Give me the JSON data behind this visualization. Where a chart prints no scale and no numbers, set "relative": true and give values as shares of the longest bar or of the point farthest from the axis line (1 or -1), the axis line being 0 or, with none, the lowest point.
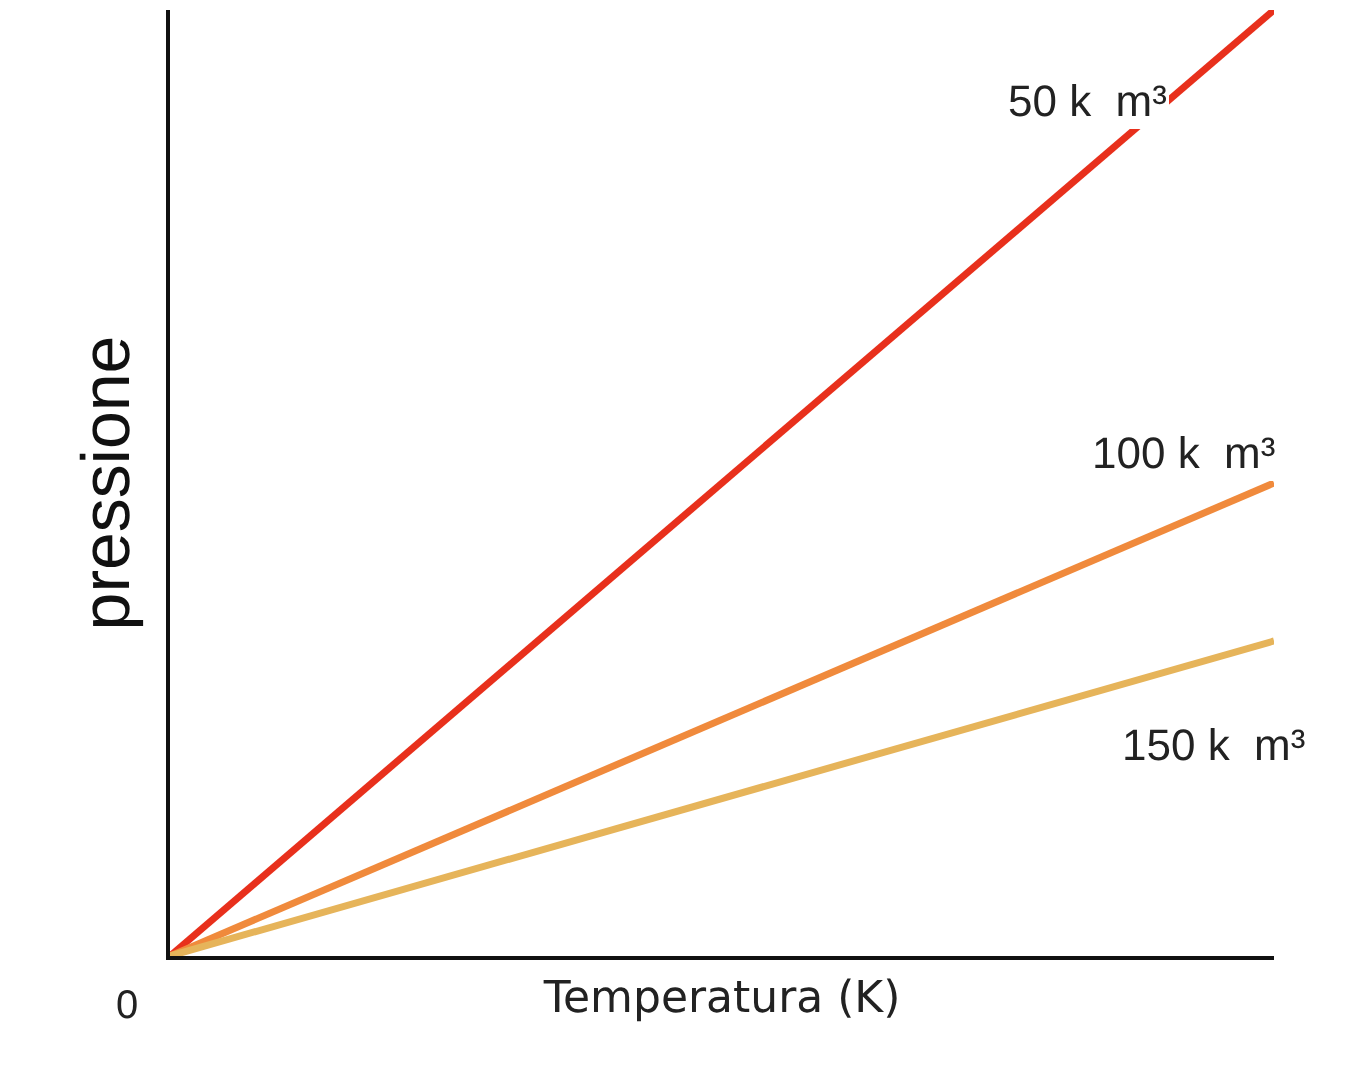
{
  "chart_data": {
    "type": "line",
    "relative": true,
    "xlabel": "Temperatura (K)",
    "ylabel": "pressione",
    "categories": [
      null,
      null
    ],
    "marker": "none",
    "line_style": "solid",
    "grid": false,
    "legend": false,
    "series": [
      {
        "name": "50 k  m³",
        "color": "#e8301c",
        "values": [
          0,
          1
        ]
      },
      {
        "name": "100 k  m³",
        "color": "#f08a3c",
        "values": [
          0,
          0.5
        ]
      },
      {
        "name": "150 k  m³",
        "color": "#e6b45a",
        "values": [
          0,
          0.333
        ]
      }
    ],
    "annotations": [
      "0"
    ]
  }
}
